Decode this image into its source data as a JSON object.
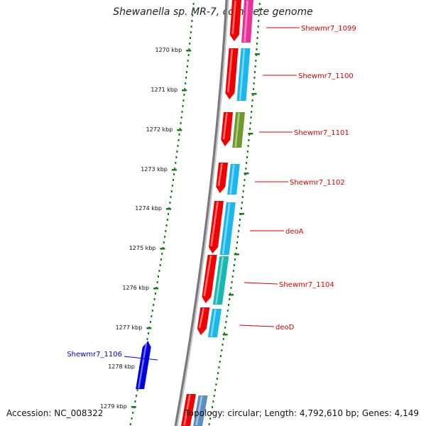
{
  "title": "Shewanella sp. MR-7, complete genome",
  "footer": {
    "accession": "Accession: NC_008322",
    "summary": "Topology: circular; Length: 4,792,610 bp; Genes: 4,149"
  },
  "kbp_labels": [
    "1270 kbp",
    "1271 kbp",
    "1272 kbp",
    "1273 kbp",
    "1274 kbp",
    "1275 kbp",
    "1276 kbp",
    "1277 kbp",
    "1278 kbp",
    "1279 kbp"
  ],
  "gene_labels": [
    {
      "text": "Shewmr7_1099",
      "color": "#d40000"
    },
    {
      "text": "Shewmr7_1100",
      "color": "#d40000"
    },
    {
      "text": "Shewmr7_1101",
      "color": "#d40000"
    },
    {
      "text": "Shewmr7_1102",
      "color": "#d40000"
    },
    {
      "text": "deoA",
      "color": "#d40000"
    },
    {
      "text": "Shewmr7_1104",
      "color": "#d40000"
    },
    {
      "text": "deoD",
      "color": "#d40000"
    },
    {
      "text": "Shewmr7_1106",
      "color": "#0000cc"
    }
  ],
  "colors": {
    "backbone": "#7a7a7a",
    "ticks": "#1a7a1a",
    "red_cds": "#f00000",
    "pink": "#e8329a",
    "cyan": "#19b7ee",
    "olive": "#6e9a2c",
    "teal": "#18b8b0",
    "blue_cds": "#0000dd",
    "steel": "#5b8fc0"
  }
}
